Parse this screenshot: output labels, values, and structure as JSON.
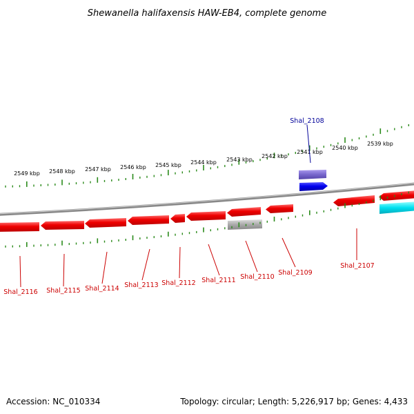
{
  "title": "Shewanella halifaxensis HAW-EB4, complete genome",
  "footer": {
    "accession": "Accession: NC_010334",
    "summary": "Topology: circular; Length: 5,226,917 bp; Genes: 4,433"
  },
  "scale_labels": [
    "2549 kbp",
    "2548 kbp",
    "2547 kbp",
    "2546 kbp",
    "2545 kbp",
    "2544 kbp",
    "2543 kbp",
    "2542 kbp",
    "2541 kbp",
    "2540 kbp",
    "2539 kbp"
  ],
  "gene_labels": {
    "top": [
      "Shal_2108"
    ],
    "bottom": [
      "Shal_2116",
      "Shal_2115",
      "Shal_2114",
      "Shal_2113",
      "Shal_2112",
      "Shal_2111",
      "Shal_2110",
      "Shal_2109",
      "Shal_2107"
    ]
  },
  "colors": {
    "gene_red": "#ff0000",
    "gene_blue": "#0000ee",
    "gene_lavender": "#7766cc",
    "gene_cyan": "#00e0f0",
    "gene_gray": "#aaaaaa",
    "backbone": "#777777",
    "ticks": "#2a8a1a"
  }
}
